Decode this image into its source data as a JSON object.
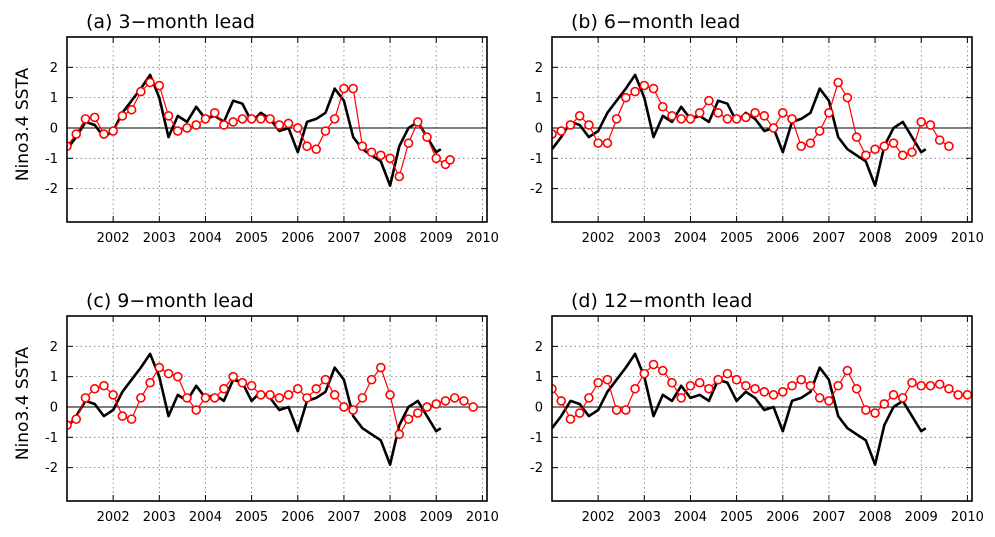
{
  "ylabel": "Nino3.4  SSTA",
  "x_tick_labels": [
    "2002",
    "2003",
    "2004",
    "2005",
    "2006",
    "2007",
    "2008",
    "2009",
    "2010"
  ],
  "y_tick_labels": [
    "2",
    "1",
    "0",
    "-1",
    "-2"
  ],
  "chart_data": [
    {
      "type": "line",
      "title": "(a) 3−month lead",
      "xlim": [
        2001.0,
        2010.1
      ],
      "ylim": [
        -3.1,
        3.0
      ],
      "grid": true,
      "series": [
        {
          "color": "#000000",
          "marker": "none",
          "x": [
            2001.0,
            2001.2,
            2001.4,
            2001.6,
            2001.8,
            2002.0,
            2002.2,
            2002.4,
            2002.6,
            2002.8,
            2003.0,
            2003.2,
            2003.4,
            2003.6,
            2003.8,
            2004.0,
            2004.2,
            2004.4,
            2004.6,
            2004.8,
            2005.0,
            2005.2,
            2005.4,
            2005.6,
            2005.8,
            2006.0,
            2006.2,
            2006.4,
            2006.6,
            2006.8,
            2007.0,
            2007.2,
            2007.4,
            2007.6,
            2007.8,
            2008.0,
            2008.2,
            2008.4,
            2008.6,
            2008.8,
            2009.0,
            2009.1
          ],
          "y": [
            -0.7,
            -0.3,
            0.2,
            0.1,
            -0.3,
            -0.1,
            0.5,
            0.9,
            1.3,
            1.75,
            1.0,
            -0.3,
            0.4,
            0.2,
            0.7,
            0.3,
            0.4,
            0.2,
            0.9,
            0.8,
            0.2,
            0.5,
            0.3,
            -0.1,
            0.0,
            -0.8,
            0.2,
            0.3,
            0.5,
            1.3,
            0.9,
            -0.3,
            -0.7,
            -0.9,
            -1.1,
            -1.9,
            -0.6,
            0.0,
            0.2,
            -0.3,
            -0.8,
            -0.7
          ]
        },
        {
          "color": "#ff0000",
          "marker": "open-circle",
          "x": [
            2001.0,
            2001.2,
            2001.4,
            2001.6,
            2001.8,
            2002.0,
            2002.2,
            2002.4,
            2002.6,
            2002.8,
            2003.0,
            2003.2,
            2003.4,
            2003.6,
            2003.8,
            2004.0,
            2004.2,
            2004.4,
            2004.6,
            2004.8,
            2005.0,
            2005.2,
            2005.4,
            2005.6,
            2005.8,
            2006.0,
            2006.2,
            2006.4,
            2006.6,
            2006.8,
            2007.0,
            2007.2,
            2007.4,
            2007.6,
            2007.8,
            2008.0,
            2008.2,
            2008.4,
            2008.6,
            2008.8,
            2009.0,
            2009.2,
            2009.3
          ],
          "y": [
            -0.6,
            -0.2,
            0.3,
            0.35,
            -0.2,
            -0.1,
            0.4,
            0.6,
            1.2,
            1.5,
            1.4,
            0.4,
            -0.1,
            0.0,
            0.1,
            0.3,
            0.5,
            0.1,
            0.2,
            0.3,
            0.3,
            0.3,
            0.3,
            0.1,
            0.15,
            0.0,
            -0.6,
            -0.7,
            -0.1,
            0.3,
            1.3,
            1.3,
            -0.6,
            -0.8,
            -0.9,
            -1.0,
            -1.6,
            -0.5,
            0.2,
            -0.3,
            -1.0,
            -1.2,
            -1.05
          ]
        }
      ]
    },
    {
      "type": "line",
      "title": "(b) 6−month lead",
      "xlim": [
        2001.0,
        2010.1
      ],
      "ylim": [
        -3.1,
        3.0
      ],
      "grid": true,
      "series": [
        {
          "color": "#000000",
          "marker": "none",
          "x": [
            2001.0,
            2001.2,
            2001.4,
            2001.6,
            2001.8,
            2002.0,
            2002.2,
            2002.4,
            2002.6,
            2002.8,
            2003.0,
            2003.2,
            2003.4,
            2003.6,
            2003.8,
            2004.0,
            2004.2,
            2004.4,
            2004.6,
            2004.8,
            2005.0,
            2005.2,
            2005.4,
            2005.6,
            2005.8,
            2006.0,
            2006.2,
            2006.4,
            2006.6,
            2006.8,
            2007.0,
            2007.2,
            2007.4,
            2007.6,
            2007.8,
            2008.0,
            2008.2,
            2008.4,
            2008.6,
            2008.8,
            2009.0,
            2009.1
          ],
          "y": [
            -0.7,
            -0.3,
            0.2,
            0.1,
            -0.3,
            -0.1,
            0.5,
            0.9,
            1.3,
            1.75,
            1.0,
            -0.3,
            0.4,
            0.2,
            0.7,
            0.3,
            0.4,
            0.2,
            0.9,
            0.8,
            0.2,
            0.5,
            0.3,
            -0.1,
            0.0,
            -0.8,
            0.2,
            0.3,
            0.5,
            1.3,
            0.9,
            -0.3,
            -0.7,
            -0.9,
            -1.1,
            -1.9,
            -0.6,
            0.0,
            0.2,
            -0.3,
            -0.8,
            -0.7
          ]
        },
        {
          "color": "#ff0000",
          "marker": "open-circle",
          "x": [
            2001.0,
            2001.2,
            2001.4,
            2001.6,
            2001.8,
            2002.0,
            2002.2,
            2002.4,
            2002.6,
            2002.8,
            2003.0,
            2003.2,
            2003.4,
            2003.6,
            2003.8,
            2004.0,
            2004.2,
            2004.4,
            2004.6,
            2004.8,
            2005.0,
            2005.2,
            2005.4,
            2005.6,
            2005.8,
            2006.0,
            2006.2,
            2006.4,
            2006.6,
            2006.8,
            2007.0,
            2007.2,
            2007.4,
            2007.6,
            2007.8,
            2008.0,
            2008.2,
            2008.4,
            2008.6,
            2008.8,
            2009.0,
            2009.2,
            2009.4,
            2009.6
          ],
          "y": [
            -0.2,
            -0.1,
            0.1,
            0.4,
            0.1,
            -0.5,
            -0.5,
            0.3,
            1.0,
            1.2,
            1.4,
            1.3,
            0.7,
            0.4,
            0.3,
            0.3,
            0.5,
            0.9,
            0.5,
            0.3,
            0.3,
            0.35,
            0.5,
            0.4,
            0.0,
            0.5,
            0.3,
            -0.6,
            -0.5,
            -0.1,
            0.5,
            1.5,
            1.0,
            -0.3,
            -0.9,
            -0.7,
            -0.6,
            -0.5,
            -0.9,
            -0.8,
            0.2,
            0.1,
            -0.4,
            -0.6
          ]
        }
      ]
    },
    {
      "type": "line",
      "title": "(c) 9−month lead",
      "xlim": [
        2001.0,
        2010.1
      ],
      "ylim": [
        -3.1,
        3.0
      ],
      "grid": true,
      "series": [
        {
          "color": "#000000",
          "marker": "none",
          "x": [
            2001.0,
            2001.2,
            2001.4,
            2001.6,
            2001.8,
            2002.0,
            2002.2,
            2002.4,
            2002.6,
            2002.8,
            2003.0,
            2003.2,
            2003.4,
            2003.6,
            2003.8,
            2004.0,
            2004.2,
            2004.4,
            2004.6,
            2004.8,
            2005.0,
            2005.2,
            2005.4,
            2005.6,
            2005.8,
            2006.0,
            2006.2,
            2006.4,
            2006.6,
            2006.8,
            2007.0,
            2007.2,
            2007.4,
            2007.6,
            2007.8,
            2008.0,
            2008.2,
            2008.4,
            2008.6,
            2008.8,
            2009.0,
            2009.1
          ],
          "y": [
            -0.7,
            -0.3,
            0.2,
            0.1,
            -0.3,
            -0.1,
            0.5,
            0.9,
            1.3,
            1.75,
            1.0,
            -0.3,
            0.4,
            0.2,
            0.7,
            0.3,
            0.4,
            0.2,
            0.9,
            0.8,
            0.2,
            0.5,
            0.3,
            -0.1,
            0.0,
            -0.8,
            0.2,
            0.3,
            0.5,
            1.3,
            0.9,
            -0.3,
            -0.7,
            -0.9,
            -1.1,
            -1.9,
            -0.6,
            0.0,
            0.2,
            -0.3,
            -0.8,
            -0.7
          ]
        },
        {
          "color": "#ff0000",
          "marker": "open-circle",
          "x": [
            2001.0,
            2001.2,
            2001.4,
            2001.6,
            2001.8,
            2002.0,
            2002.2,
            2002.4,
            2002.6,
            2002.8,
            2003.0,
            2003.2,
            2003.4,
            2003.6,
            2003.8,
            2004.0,
            2004.2,
            2004.4,
            2004.6,
            2004.8,
            2005.0,
            2005.2,
            2005.4,
            2005.6,
            2005.8,
            2006.0,
            2006.2,
            2006.4,
            2006.6,
            2006.8,
            2007.0,
            2007.2,
            2007.4,
            2007.6,
            2007.8,
            2008.0,
            2008.2,
            2008.4,
            2008.6,
            2008.8,
            2009.0,
            2009.2,
            2009.4,
            2009.6,
            2009.8
          ],
          "y": [
            -0.6,
            -0.4,
            0.3,
            0.6,
            0.7,
            0.4,
            -0.3,
            -0.4,
            0.3,
            0.8,
            1.3,
            1.1,
            1.0,
            0.3,
            -0.1,
            0.3,
            0.3,
            0.6,
            1.0,
            0.8,
            0.7,
            0.4,
            0.4,
            0.3,
            0.4,
            0.6,
            0.3,
            0.6,
            0.9,
            0.4,
            0.0,
            -0.1,
            0.3,
            0.9,
            1.3,
            0.4,
            -0.9,
            -0.4,
            -0.2,
            0.0,
            0.1,
            0.2,
            0.3,
            0.2,
            0.0
          ]
        }
      ]
    },
    {
      "type": "line",
      "title": "(d) 12−month lead",
      "xlim": [
        2001.0,
        2010.1
      ],
      "ylim": [
        -3.1,
        3.0
      ],
      "grid": true,
      "series": [
        {
          "color": "#000000",
          "marker": "none",
          "x": [
            2001.0,
            2001.2,
            2001.4,
            2001.6,
            2001.8,
            2002.0,
            2002.2,
            2002.4,
            2002.6,
            2002.8,
            2003.0,
            2003.2,
            2003.4,
            2003.6,
            2003.8,
            2004.0,
            2004.2,
            2004.4,
            2004.6,
            2004.8,
            2005.0,
            2005.2,
            2005.4,
            2005.6,
            2005.8,
            2006.0,
            2006.2,
            2006.4,
            2006.6,
            2006.8,
            2007.0,
            2007.2,
            2007.4,
            2007.6,
            2007.8,
            2008.0,
            2008.2,
            2008.4,
            2008.6,
            2008.8,
            2009.0,
            2009.1
          ],
          "y": [
            -0.7,
            -0.3,
            0.2,
            0.1,
            -0.3,
            -0.1,
            0.5,
            0.9,
            1.3,
            1.75,
            1.0,
            -0.3,
            0.4,
            0.2,
            0.7,
            0.3,
            0.4,
            0.2,
            0.9,
            0.8,
            0.2,
            0.5,
            0.3,
            -0.1,
            0.0,
            -0.8,
            0.2,
            0.3,
            0.5,
            1.3,
            0.9,
            -0.3,
            -0.7,
            -0.9,
            -1.1,
            -1.9,
            -0.6,
            0.0,
            0.2,
            -0.3,
            -0.8,
            -0.7
          ]
        },
        {
          "color": "#ff0000",
          "marker": "open-circle",
          "x": [
            2001.0,
            2001.2,
            2001.4,
            2001.6,
            2001.8,
            2002.0,
            2002.2,
            2002.4,
            2002.6,
            2002.8,
            2003.0,
            2003.2,
            2003.4,
            2003.6,
            2003.8,
            2004.0,
            2004.2,
            2004.4,
            2004.6,
            2004.8,
            2005.0,
            2005.2,
            2005.4,
            2005.6,
            2005.8,
            2006.0,
            2006.2,
            2006.4,
            2006.6,
            2006.8,
            2007.0,
            2007.2,
            2007.4,
            2007.6,
            2007.8,
            2008.0,
            2008.2,
            2008.4,
            2008.6,
            2008.8,
            2009.0,
            2009.2,
            2009.4,
            2009.6,
            2009.8,
            2010.0
          ],
          "y": [
            0.6,
            0.2,
            -0.4,
            -0.2,
            0.3,
            0.8,
            0.9,
            -0.1,
            -0.1,
            0.6,
            1.1,
            1.4,
            1.2,
            0.8,
            0.3,
            0.7,
            0.8,
            0.6,
            0.9,
            1.1,
            0.9,
            0.7,
            0.6,
            0.5,
            0.4,
            0.5,
            0.7,
            0.9,
            0.7,
            0.3,
            0.2,
            0.7,
            1.2,
            0.6,
            -0.1,
            -0.2,
            0.1,
            0.4,
            0.3,
            0.8,
            0.7,
            0.7,
            0.75,
            0.6,
            0.4,
            0.4
          ]
        }
      ]
    }
  ]
}
